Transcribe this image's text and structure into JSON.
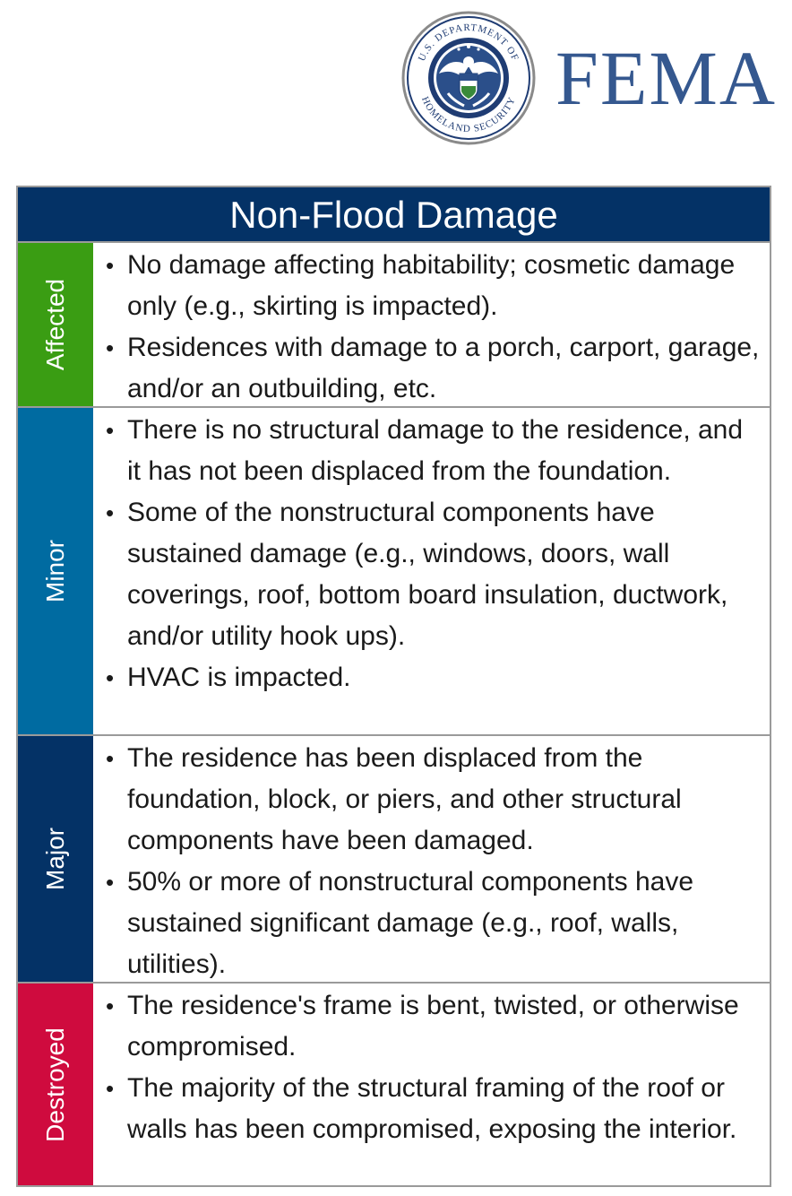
{
  "header": {
    "seal": {
      "ring_text_top": "U.S. DEPARTMENT OF",
      "ring_text_bottom": "HOMELAND SECURITY",
      "icon": "dhs-seal-icon"
    },
    "brand": "FEMA",
    "brand_color": "#35588f"
  },
  "table": {
    "title": "Non-Flood Damage",
    "title_bg": "#043266",
    "rows": [
      {
        "category": "Affected",
        "color": "#3a9d13",
        "items": [
          "No damage affecting habitability; cosmetic damage only (e.g., skirting is impacted).",
          "Residences with damage to a porch, carport, garage, and/or an outbuilding, etc."
        ]
      },
      {
        "category": "Minor",
        "color": "#006ba1",
        "items": [
          "There is no structural damage to the residence, and it has not been displaced from the foundation.",
          "Some of the nonstructural components have sustained damage (e.g., windows, doors, wall coverings, roof, bottom board insulation, ductwork, and/or utility hook ups).",
          "HVAC is impacted."
        ]
      },
      {
        "category": "Major",
        "color": "#043266",
        "items": [
          "The residence has been displaced from the foundation, block, or piers, and other structural components have been damaged.",
          "50% or more of nonstructural components have sustained significant damage (e.g., roof, walls, utilities)."
        ]
      },
      {
        "category": "Destroyed",
        "color": "#cf0b3e",
        "items": [
          "The residence's frame is bent, twisted, or otherwise compromised.",
          "The majority of the structural framing of the roof or walls has been compromised, exposing the interior."
        ]
      }
    ]
  }
}
